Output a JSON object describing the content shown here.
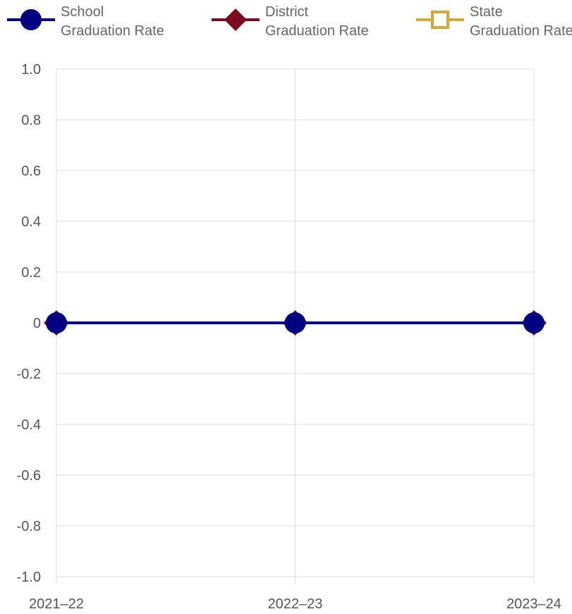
{
  "legend": [
    {
      "line1": "School",
      "line2": "Graduation Rate"
    },
    {
      "line1": "District",
      "line2": "Graduation Rate"
    },
    {
      "line1": "State",
      "line2": "Graduation Rate"
    }
  ],
  "chart_data": {
    "type": "line",
    "categories": [
      "2021–22",
      "2022–23",
      "2023–24"
    ],
    "series": [
      {
        "name": "School Graduation Rate",
        "values": [
          0,
          0,
          0
        ],
        "color": "#000080",
        "marker": "circle"
      },
      {
        "name": "District Graduation Rate",
        "values": [
          0,
          0,
          0
        ],
        "color": "#7b0c1e",
        "marker": "diamond"
      },
      {
        "name": "State Graduation Rate",
        "values": [
          null,
          null,
          null
        ],
        "color": "#d4a935",
        "marker": "square-open"
      }
    ],
    "yticks": [
      "1.0",
      "0.8",
      "0.6",
      "0.4",
      "0.2",
      "0",
      "-0.2",
      "-0.4",
      "-0.6",
      "-0.8",
      "-1.0"
    ],
    "ylim": [
      -1,
      1
    ],
    "grid": true,
    "legend_position": "top"
  }
}
